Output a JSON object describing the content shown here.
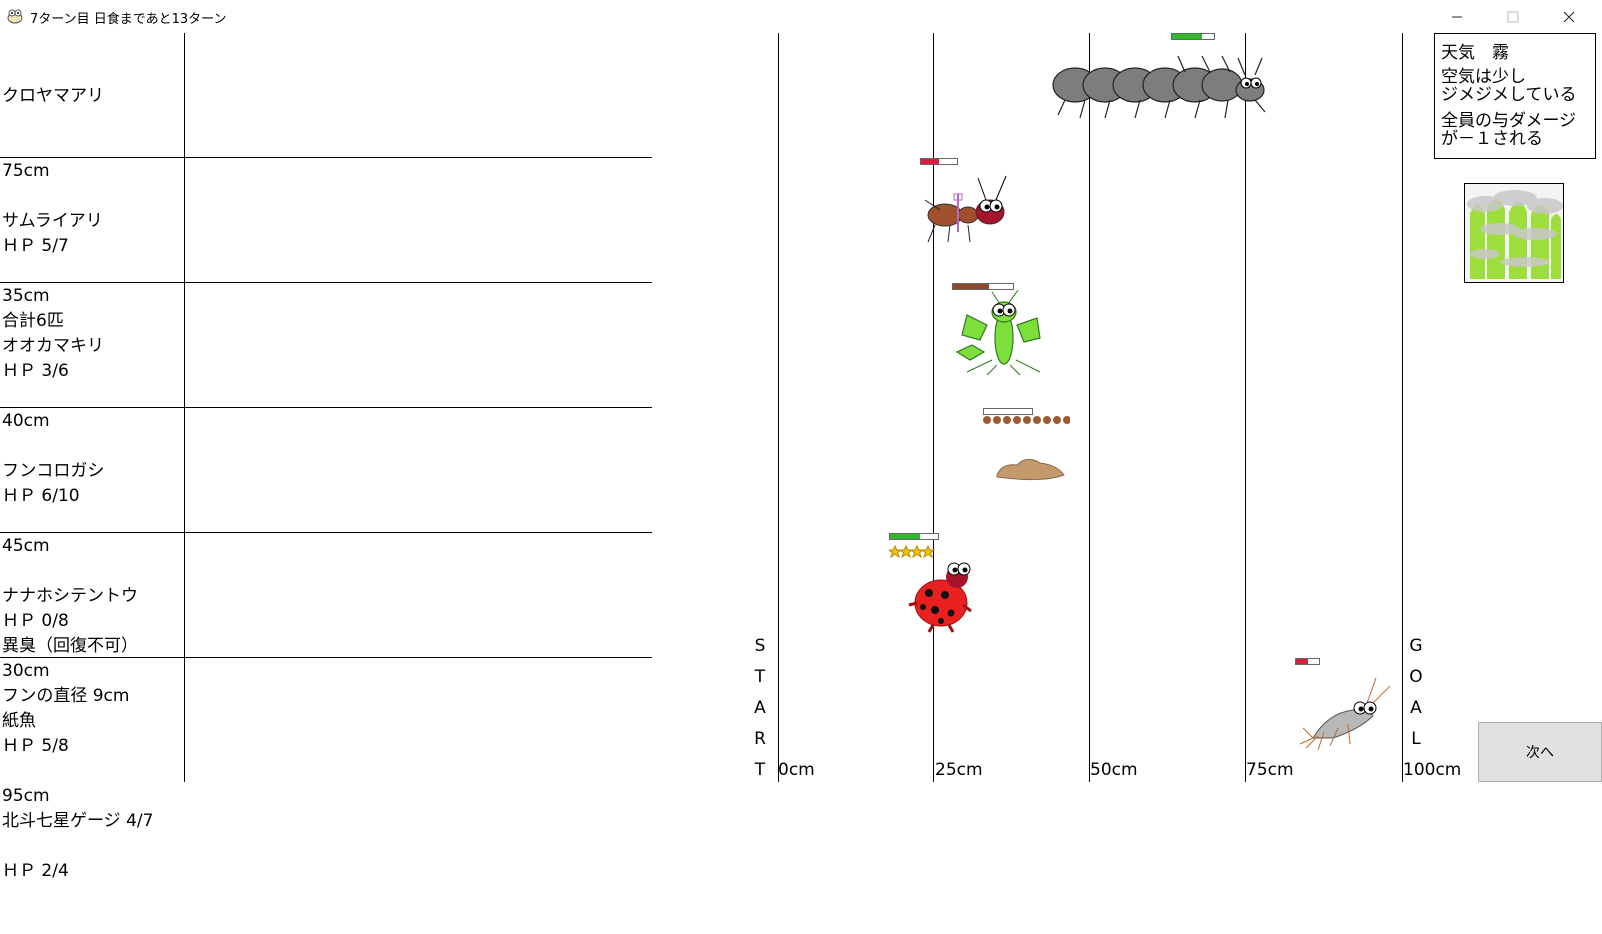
{
  "window": {
    "title": "7ターン目 日食まであと13ターン",
    "minimize": "–",
    "maximize": "□",
    "close": "✕"
  },
  "insects": [
    {
      "lines": [
        "クロヤマアリ",
        "75cm",
        "ＨＰ 5/7",
        "合計6匹"
      ],
      "hp_fraction": 0.714
    },
    {
      "lines": [
        "サムライアリ",
        "35cm",
        "ＨＰ 3/6"
      ],
      "hp_fraction": 0.5
    },
    {
      "lines": [
        "オオカマキリ",
        "40cm",
        "ＨＰ 6/10",
        "",
        "異臭（回復不可）"
      ],
      "hp_fraction": 0.6
    },
    {
      "lines": [
        "フンコロガシ",
        "45cm",
        "ＨＰ 0/8",
        "フンの直径 9cm"
      ],
      "hp_fraction": 0.0
    },
    {
      "lines": [
        "ナナホシテントウ",
        "30cm",
        "ＨＰ 5/8",
        "北斗七星ゲージ 4/7"
      ],
      "hp_fraction": 0.625
    },
    {
      "lines": [
        "紙魚",
        "95cm",
        "ＨＰ 2/4"
      ],
      "hp_fraction": 0.5
    }
  ],
  "track": {
    "axis_labels": [
      "0cm",
      "25cm",
      "50cm",
      "75cm",
      "100cm"
    ],
    "start_letters": [
      "S",
      "T",
      "A",
      "R",
      "T"
    ],
    "goal_letters": [
      "G",
      "O",
      "A",
      "L"
    ]
  },
  "weather": {
    "line1": "天気　霧",
    "line2": "空気は少し",
    "line3": "ジメジメしている",
    "line4": "全員の与ダメージ",
    "line5": "が－１される",
    "icon": "fog-forest-icon"
  },
  "next_button": {
    "label": "次へ"
  },
  "colors": {
    "hp_green": "#2eb82e",
    "hp_red": "#d81e3c",
    "hp_brown": "#8b4a2b",
    "ladybug_red": "#e8201f",
    "mantis_green": "#7dde3c",
    "ant_gray": "#7d7d7d"
  }
}
